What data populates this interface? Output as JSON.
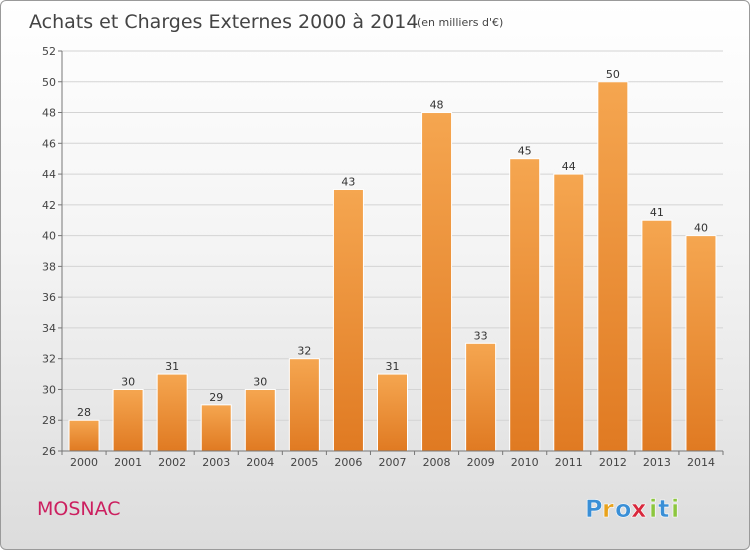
{
  "chart_data": {
    "type": "bar",
    "title": "Achats et Charges Externes 2000 à 2014",
    "unit": "(en milliers d'€)",
    "categories": [
      "2000",
      "2001",
      "2002",
      "2003",
      "2004",
      "2005",
      "2006",
      "2007",
      "2008",
      "2009",
      "2010",
      "2011",
      "2012",
      "2013",
      "2014"
    ],
    "values": [
      28,
      30,
      31,
      29,
      30,
      32,
      43,
      31,
      48,
      33,
      45,
      44,
      50,
      41,
      40
    ],
    "ylim": [
      26,
      52
    ],
    "yticks": [
      26,
      28,
      30,
      32,
      34,
      36,
      38,
      40,
      42,
      44,
      46,
      48,
      50,
      52
    ],
    "grid": true,
    "bar_color_light": "#f5a650",
    "bar_color_dark": "#e07a22"
  },
  "commune": "MOSNAC",
  "logo": {
    "letters": [
      "P",
      "r",
      "o",
      "x",
      "i",
      "t",
      "i"
    ],
    "colors": [
      "#3a8fd6",
      "#e8a21c",
      "#3a8fd6",
      "#d8283c",
      "#8cc63f",
      "#3a8fd6",
      "#8cc63f"
    ]
  }
}
